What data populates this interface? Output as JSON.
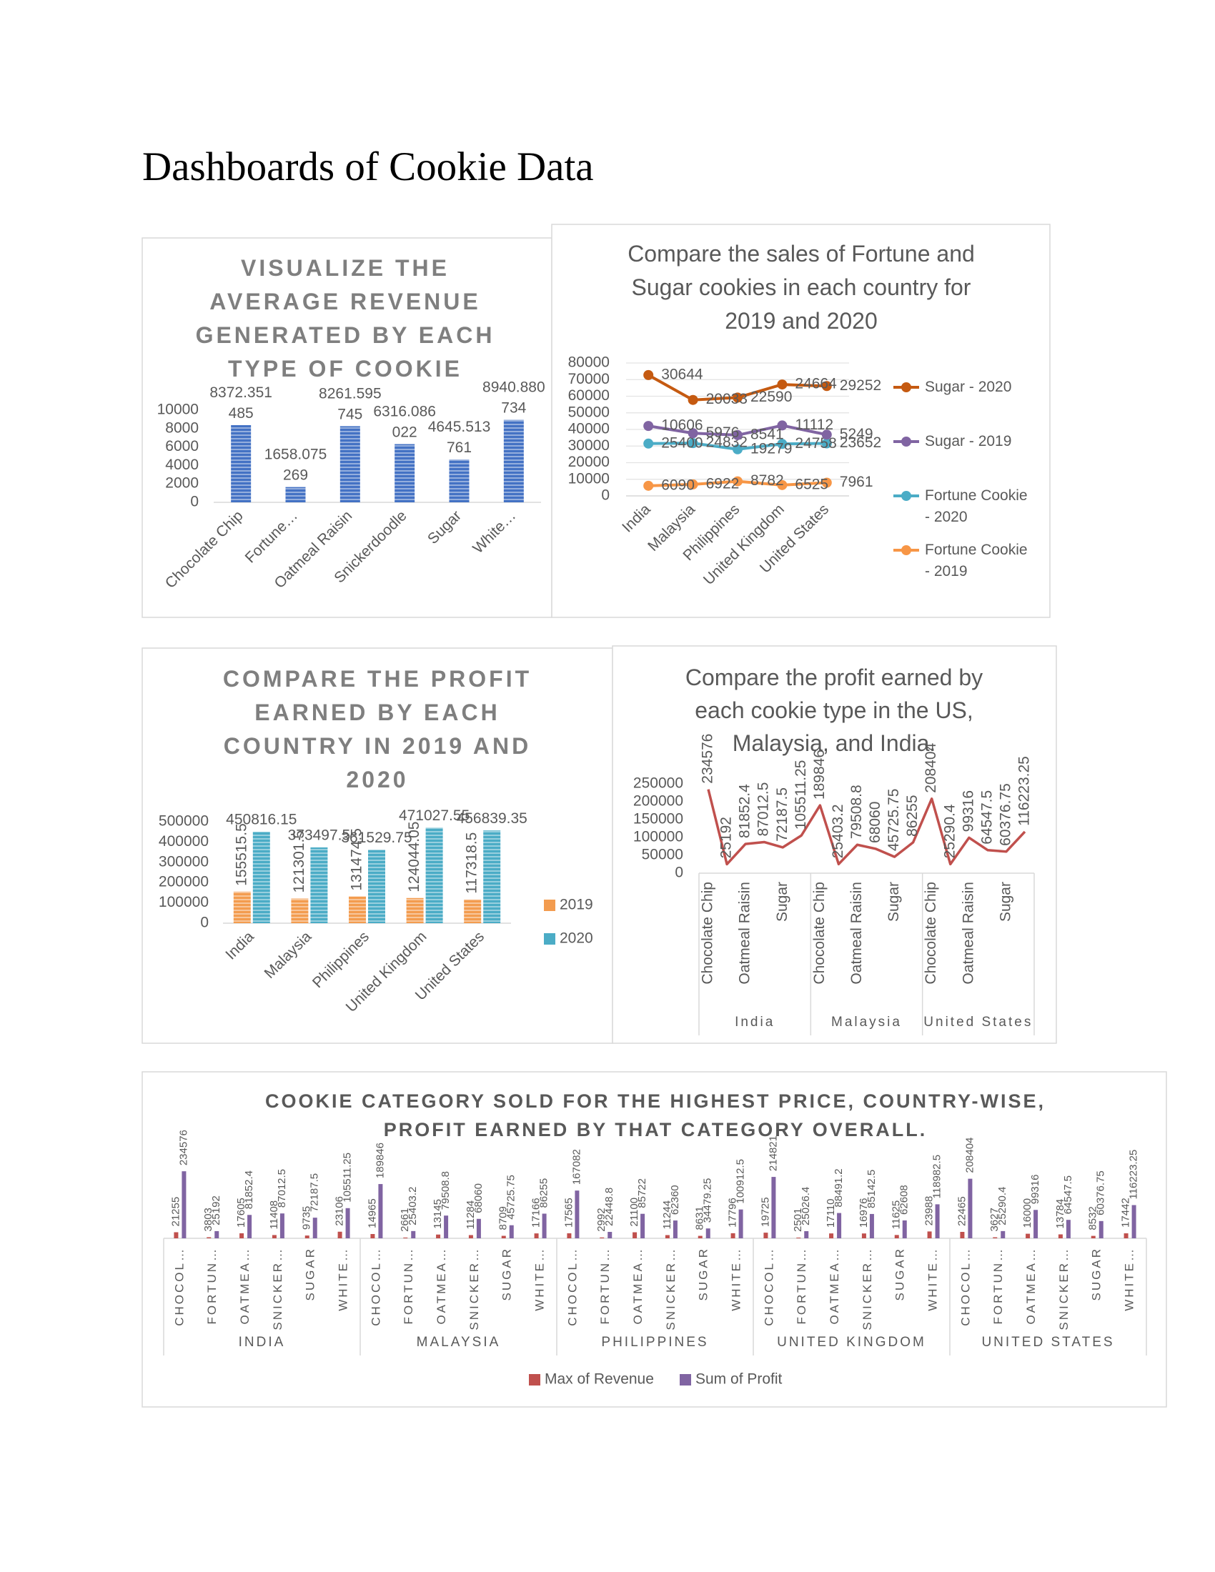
{
  "title": "Dashboards of Cookie Data",
  "chart_data": [
    {
      "type": "bar",
      "title": "VISUALIZE THE AVERAGE REVENUE GENERATED BY EACH TYPE OF COOKIE",
      "categories": [
        "Chocolate Chip",
        "Fortune…",
        "Oatmeal Raisin",
        "Snickerdoodle",
        "Sugar",
        "White…"
      ],
      "values": [
        8372.351485,
        1658.075269,
        8261.595745,
        6316.086022,
        4645.513761,
        8940.880734
      ],
      "color": "#4472c4",
      "pattern": "horizontal-stripes",
      "ylim": [
        0,
        10000
      ],
      "yticks": [
        0,
        2000,
        4000,
        6000,
        8000,
        10000
      ],
      "grid": false
    },
    {
      "type": "line",
      "title": "Compare the sales of Fortune and Sugar cookies in each country for 2019 and 2020",
      "categories": [
        "India",
        "Malaysia",
        "Philippines",
        "United Kingdom",
        "United States"
      ],
      "stacked": true,
      "markers": true,
      "series": [
        {
          "name": "Fortune Cookie - 2019",
          "color": "#f79646",
          "values": [
            6090,
            6922,
            8782,
            6525,
            7961
          ]
        },
        {
          "name": "Fortune Cookie - 2020",
          "color": "#4bacc6",
          "values": [
            25400,
            24832,
            19279,
            24758,
            23652
          ]
        },
        {
          "name": "Sugar - 2019",
          "color": "#8064a2",
          "values": [
            10606,
            5976,
            8541,
            11112,
            5249
          ]
        },
        {
          "name": "Sugar - 2020",
          "color": "#c55a11",
          "values": [
            30644,
            20033,
            22590,
            24664,
            29252
          ]
        }
      ],
      "ylim": [
        0,
        80000
      ],
      "yticks": [
        0,
        10000,
        20000,
        30000,
        40000,
        50000,
        60000,
        70000,
        80000
      ],
      "grid": true,
      "legend": "right"
    },
    {
      "type": "bar",
      "title": "COMPARE THE PROFIT EARNED BY EACH COUNTRY IN 2019 AND 2020",
      "categories": [
        "India",
        "Malaysia",
        "Philippines",
        "United Kingdom",
        "United States"
      ],
      "pattern": "horizontal-stripes",
      "series": [
        {
          "name": "2019",
          "color": "#f39c4f",
          "values": [
            155515.5,
            121301.5,
            131474.5,
            124044.05,
            117318.5
          ]
        },
        {
          "name": "2020",
          "color": "#4bacc6",
          "values": [
            450816.15,
            373497.5,
            361529.75,
            471027.55,
            456839.35
          ]
        }
      ],
      "ylim": [
        0,
        500000
      ],
      "yticks": [
        0,
        100000,
        200000,
        300000,
        400000,
        500000
      ],
      "grid": false,
      "legend": "right"
    },
    {
      "type": "line",
      "title": "Compare the profit earned by each cookie type in the US, Malaysia, and India.",
      "categories": [
        "Chocolate Chip",
        null,
        "Oatmeal Raisin",
        null,
        "Sugar",
        null,
        "Chocolate Chip",
        null,
        "Oatmeal Raisin",
        null,
        "Sugar",
        null,
        "Chocolate Chip",
        null,
        "Oatmeal Raisin",
        null,
        "Sugar",
        null
      ],
      "groups": [
        "India",
        "Malaysia",
        "United States"
      ],
      "values": [
        234576,
        25192,
        81852.4,
        87012.5,
        72187.5,
        105511.25,
        189846,
        25403.2,
        79508.8,
        68060,
        45725.75,
        86255,
        208404,
        25290.4,
        99316,
        64547.5,
        60376.75,
        116223.25
      ],
      "color": "#c0504d",
      "markers": false,
      "ylim": [
        0,
        250000
      ],
      "yticks": [
        0,
        50000,
        100000,
        150000,
        200000,
        250000
      ],
      "grid": false
    },
    {
      "type": "bar",
      "title": "COOKIE CATEGORY SOLD FOR THE HIGHEST PRICE, COUNTRY-WISE, PROFIT EARNED BY THAT CATEGORY OVERALL.",
      "categories": [
        "CHOCOL…",
        "FORTUN…",
        "OATMEA…",
        "SNICKER…",
        "SUGAR",
        "WHITE…",
        "CHOCOL…",
        "FORTUN…",
        "OATMEA…",
        "SNICKER…",
        "SUGAR",
        "WHITE…",
        "CHOCOL…",
        "FORTUN…",
        "OATMEA…",
        "SNICKER…",
        "SUGAR",
        "WHITE…",
        "CHOCOL…",
        "FORTUN…",
        "OATMEA…",
        "SNICKER…",
        "SUGAR",
        "WHITE…",
        "CHOCOL…",
        "FORTUN…",
        "OATMEA…",
        "SNICKER…",
        "SUGAR",
        "WHITE…"
      ],
      "groups": [
        "INDIA",
        "MALAYSIA",
        "PHILIPPINES",
        "UNITED KINGDOM",
        "UNITED STATES"
      ],
      "series": [
        {
          "name": "Max of Revenue",
          "color": "#c0504d",
          "values": [
            21255,
            3803,
            17605,
            11408,
            9735,
            23106,
            14965,
            2661,
            13145,
            11284,
            8709,
            17166,
            17565,
            2992,
            21100,
            11244,
            8631,
            17796,
            19725,
            2501,
            17110,
            16976,
            11625,
            23988,
            22465,
            3627,
            16000,
            13784,
            8532,
            17442
          ]
        },
        {
          "name": "Sum of Profit",
          "color": "#8064a2",
          "values": [
            234576,
            25192,
            81852.4,
            87012.5,
            72187.5,
            105511.25,
            189846,
            25403.2,
            79508.8,
            68060,
            45725.75,
            86255,
            167082,
            22448.8,
            85722,
            62360,
            34479.25,
            100912.5,
            214821,
            25026.4,
            88491.2,
            85142.5,
            62608,
            118982.5,
            208404,
            25290.4,
            99316,
            64547.5,
            60376.75,
            116223.25
          ]
        }
      ],
      "ylim": [
        0,
        250000
      ],
      "grid": false,
      "legend": "bottom"
    }
  ]
}
